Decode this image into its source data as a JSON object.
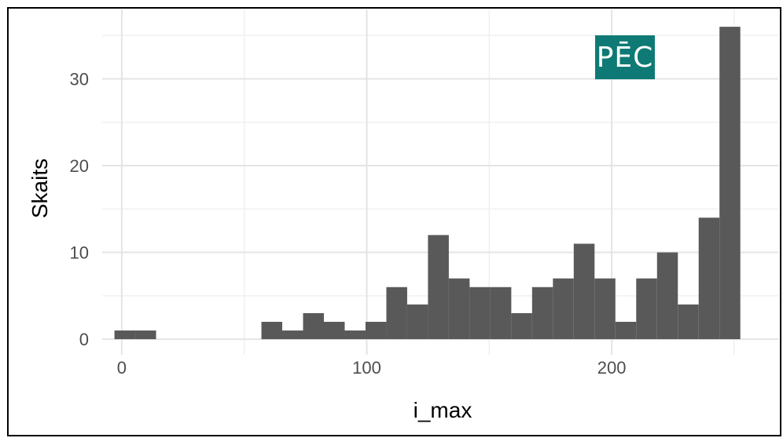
{
  "badge": {
    "text": "PĒC",
    "color": "#0f7a75"
  },
  "chart_data": {
    "type": "bar",
    "subtype": "histogram",
    "xlabel": "i_max",
    "ylabel": "Skaits",
    "x_ticks": [
      0,
      100,
      200
    ],
    "y_ticks": [
      0,
      10,
      20,
      30
    ],
    "xlim": [
      -8,
      268
    ],
    "ylim": [
      -1.8,
      38
    ],
    "grid": true,
    "bar_color": "#595959",
    "bin_width": 8.5,
    "bins": [
      {
        "x0": -3,
        "value": 1
      },
      {
        "x0": 5.5,
        "value": 1
      },
      {
        "x0": 57,
        "value": 2
      },
      {
        "x0": 65.5,
        "value": 1
      },
      {
        "x0": 74,
        "value": 3
      },
      {
        "x0": 82.5,
        "value": 2
      },
      {
        "x0": 91,
        "value": 1
      },
      {
        "x0": 99.5,
        "value": 2
      },
      {
        "x0": 108,
        "value": 6
      },
      {
        "x0": 116.5,
        "value": 4
      },
      {
        "x0": 125,
        "value": 12
      },
      {
        "x0": 133.5,
        "value": 7
      },
      {
        "x0": 142,
        "value": 6
      },
      {
        "x0": 150.5,
        "value": 6
      },
      {
        "x0": 159,
        "value": 3
      },
      {
        "x0": 167.5,
        "value": 6
      },
      {
        "x0": 176,
        "value": 7
      },
      {
        "x0": 184.5,
        "value": 11
      },
      {
        "x0": 193,
        "value": 7
      },
      {
        "x0": 201.5,
        "value": 2
      },
      {
        "x0": 210,
        "value": 7
      },
      {
        "x0": 218.5,
        "value": 10
      },
      {
        "x0": 227,
        "value": 4
      },
      {
        "x0": 235.5,
        "value": 14
      },
      {
        "x0": 244,
        "value": 36
      }
    ]
  }
}
